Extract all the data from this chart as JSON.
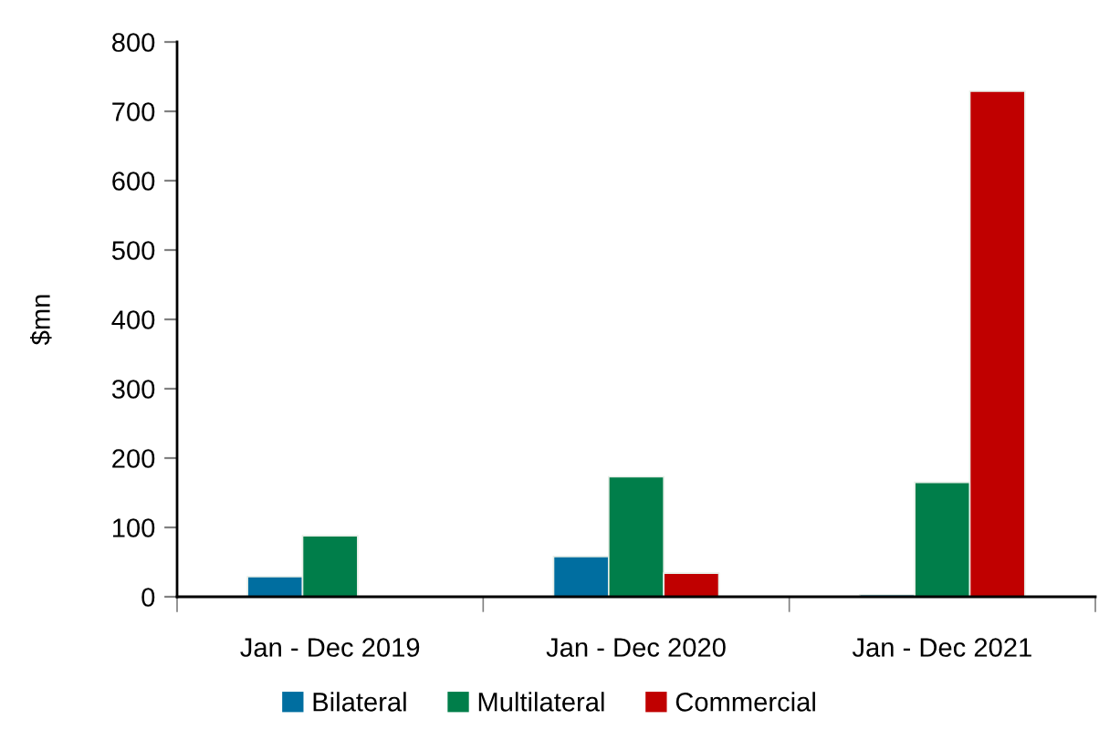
{
  "chart_data": {
    "type": "bar",
    "categories": [
      "Jan - Dec 2019",
      "Jan - Dec 2020",
      "Jan - Dec 2021"
    ],
    "series": [
      {
        "name": "Bilateral",
        "color": "#006ea0",
        "values": [
          29,
          58,
          3
        ]
      },
      {
        "name": "Multilateral",
        "color": "#007e4a",
        "values": [
          88,
          173,
          165
        ]
      },
      {
        "name": "Commercial",
        "color": "#c00000",
        "values": [
          null,
          34,
          729
        ]
      }
    ],
    "ylabel": "$mn",
    "ylim": [
      0,
      800
    ],
    "yticks": [
      0,
      100,
      200,
      300,
      400,
      500,
      600,
      700,
      800
    ],
    "grid": false,
    "legend": "bottom"
  }
}
